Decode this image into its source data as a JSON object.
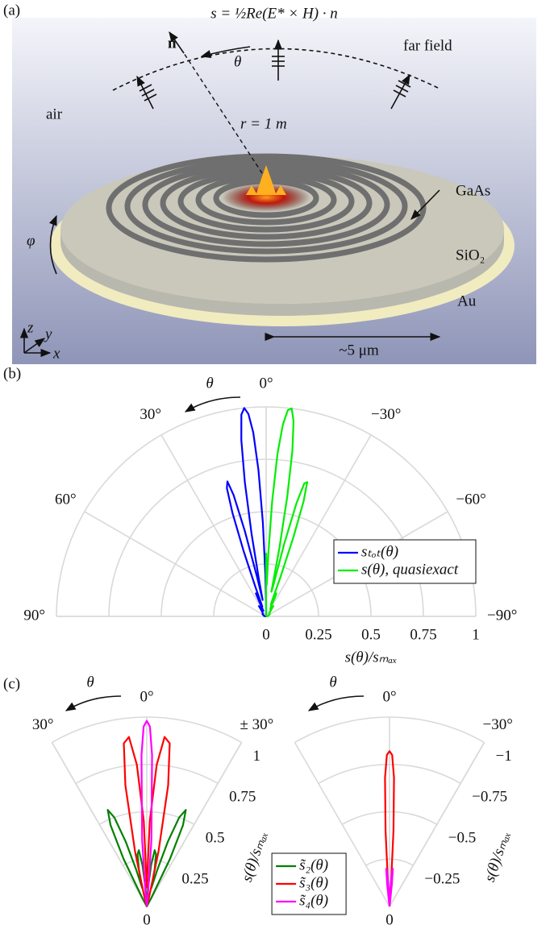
{
  "panel_a": {
    "label": "(a)",
    "poynting": "s = ½Re(E* × H) · n",
    "normal": "n",
    "theta": "θ",
    "far_field": "far field",
    "air": "air",
    "radius": "r = 1 m",
    "gaas": "GaAs",
    "sio2": "SiO₂",
    "phi": "φ",
    "au": "Au",
    "scale": "~5 μm",
    "axes": {
      "z": "z",
      "y": "y",
      "x": "x"
    }
  },
  "chart_data": [
    {
      "type": "polar",
      "panel_label": "(b)",
      "theta_annotation": "θ",
      "xlabel": "s(θ)/sₘₐₓ",
      "thetalim": [
        -90,
        90
      ],
      "thetaticks": [
        {
          "value": 90,
          "label": "90°"
        },
        {
          "value": 60,
          "label": "60°"
        },
        {
          "value": 30,
          "label": "30°"
        },
        {
          "value": 0,
          "label": "0°"
        },
        {
          "value": -30,
          "label": "−30°"
        },
        {
          "value": -60,
          "label": "−60°"
        },
        {
          "value": -90,
          "label": "−90°"
        }
      ],
      "rlim": [
        0,
        1
      ],
      "rticks": [
        0,
        0.25,
        0.5,
        0.75,
        1
      ],
      "legend": "lower right",
      "series": [
        {
          "name": "sₜₒₜ(θ)",
          "color": "#0000ff",
          "theta": [
            0,
            1,
            2,
            3,
            4,
            5,
            6,
            7,
            8,
            9,
            10,
            11,
            12,
            13,
            14,
            15,
            16,
            17,
            18,
            19,
            20,
            21,
            22,
            23,
            24,
            25,
            26,
            30,
            35,
            40,
            50,
            60,
            70,
            80,
            90
          ],
          "values": [
            0.05,
            0.2,
            0.45,
            0.7,
            0.88,
            0.97,
            1.0,
            0.97,
            0.85,
            0.65,
            0.4,
            0.18,
            0.08,
            0.2,
            0.42,
            0.6,
            0.67,
            0.64,
            0.52,
            0.33,
            0.15,
            0.05,
            0.08,
            0.12,
            0.12,
            0.08,
            0.03,
            0.04,
            0.06,
            0.03,
            0.02,
            0.02,
            0.01,
            0.01,
            0
          ]
        },
        {
          "name": "s(θ), quasiexact",
          "color": "#00ee00",
          "theta": [
            0,
            -1,
            -2,
            -3,
            -4,
            -5,
            -6,
            -7,
            -8,
            -9,
            -10,
            -11,
            -12,
            -13,
            -14,
            -15,
            -16,
            -17,
            -18,
            -19,
            -20,
            -21,
            -22,
            -23,
            -24,
            -25,
            -26,
            -30,
            -35,
            -40,
            -50,
            -60,
            -70,
            -80,
            -90
          ],
          "values": [
            0.3,
            0.15,
            0.3,
            0.55,
            0.78,
            0.92,
            0.99,
            1.0,
            0.94,
            0.8,
            0.58,
            0.33,
            0.12,
            0.15,
            0.36,
            0.56,
            0.66,
            0.67,
            0.58,
            0.4,
            0.2,
            0.07,
            0.06,
            0.1,
            0.12,
            0.1,
            0.05,
            0.04,
            0.06,
            0.03,
            0.02,
            0.02,
            0.01,
            0.01,
            0
          ]
        }
      ]
    },
    {
      "type": "polar",
      "panel_label": "(c)",
      "theta_annotation": "θ",
      "ylabel": "s(θ)/sₘₐₓ",
      "thetalim": [
        -30,
        30
      ],
      "thetaticks": [
        {
          "value": 30,
          "label": "30°"
        },
        {
          "value": 0,
          "label": "0°"
        },
        {
          "value": -30,
          "label": "± 30°"
        }
      ],
      "rlim": [
        0,
        1
      ],
      "rticks": [
        0,
        0.25,
        0.5,
        0.75,
        1
      ],
      "legend": "right",
      "series": [
        {
          "name": "s̃₂(θ)",
          "color": "#008000",
          "theta": [
            -28,
            -26,
            -24,
            -22,
            -20,
            -18,
            -16,
            -14,
            -12,
            -10,
            -8,
            -6,
            -4,
            -2,
            0,
            2,
            4,
            6,
            8,
            10,
            12,
            14,
            16,
            18,
            20,
            22,
            24,
            26,
            28
          ],
          "values": [
            0.05,
            0.28,
            0.47,
            0.55,
            0.5,
            0.36,
            0.2,
            0.1,
            0.2,
            0.28,
            0.3,
            0.22,
            0.1,
            0.03,
            0,
            0.03,
            0.1,
            0.22,
            0.3,
            0.28,
            0.2,
            0.1,
            0.2,
            0.36,
            0.5,
            0.55,
            0.47,
            0.28,
            0.05
          ]
        },
        {
          "name": "s̃₃(θ)",
          "color": "#ff0000",
          "theta": [
            -14,
            -12,
            -10,
            -8,
            -6,
            -4,
            -2,
            0,
            2,
            4,
            6,
            8,
            10,
            12,
            14
          ],
          "values": [
            0.05,
            0.3,
            0.65,
            0.87,
            0.9,
            0.75,
            0.45,
            0.1,
            0.45,
            0.75,
            0.9,
            0.87,
            0.65,
            0.3,
            0.05
          ]
        },
        {
          "name": "s̃₄(θ)",
          "color": "#ff00ff",
          "theta": [
            -6,
            -4,
            -2,
            -1,
            0,
            1,
            2,
            4,
            6
          ],
          "values": [
            0.05,
            0.35,
            0.8,
            0.95,
            0.98,
            0.95,
            0.8,
            0.35,
            0.05
          ]
        }
      ]
    },
    {
      "type": "polar",
      "theta_annotation": "θ",
      "ylabel": "s(θ)/sₘₐₓ",
      "thetalim": [
        -30,
        30
      ],
      "thetaticks": [
        {
          "value": 0,
          "label": "0°"
        },
        {
          "value": -30,
          "label": "−30°"
        }
      ],
      "rlim": [
        0,
        -1
      ],
      "rticks": [
        0,
        {
          "value": -0.25,
          "label": "−0.25"
        },
        {
          "value": -0.5,
          "label": "−0.5"
        },
        {
          "value": -0.75,
          "label": "−0.75"
        },
        {
          "value": -1,
          "label": "−1"
        }
      ],
      "legend": false,
      "series": [
        {
          "name": "s̃₃(θ)",
          "color": "#ff0000",
          "theta": [
            -4,
            -3,
            -2,
            -1,
            0,
            1,
            2,
            3,
            4
          ],
          "values": [
            -0.1,
            -0.4,
            -0.68,
            -0.8,
            -0.82,
            -0.8,
            -0.68,
            -0.4,
            -0.1
          ]
        },
        {
          "name": "s̃₄(θ)",
          "color": "#ff00ff",
          "theta": [
            -7,
            -6,
            -5,
            -4,
            -3,
            -2,
            0,
            2,
            3,
            4,
            5,
            6,
            7
          ],
          "values": [
            -0.02,
            -0.12,
            -0.2,
            -0.18,
            -0.1,
            -0.05,
            -0.02,
            -0.05,
            -0.1,
            -0.18,
            -0.2,
            -0.12,
            -0.02
          ]
        }
      ]
    }
  ]
}
